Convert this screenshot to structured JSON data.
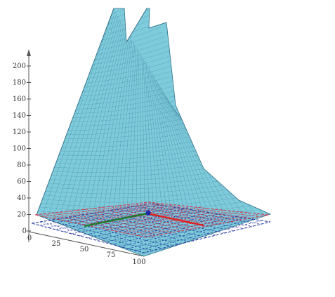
{
  "chart_data": {
    "type": "surface3d",
    "title": "",
    "xlabel": "",
    "ylabel": "",
    "zlabel": "",
    "z_axis": {
      "ticks": [
        "0",
        "20",
        "40",
        "60",
        "80",
        "100",
        "120",
        "140",
        "160",
        "180",
        "200"
      ],
      "range": [
        0,
        200
      ]
    },
    "x_axis": {
      "ticks": [
        "0",
        "25",
        "50",
        "75",
        "100"
      ],
      "range": [
        0,
        100
      ]
    },
    "grid": false,
    "legend": "none",
    "surface": {
      "color": "#7ecbdc",
      "mesh_color": "#2f6f86",
      "description_points": [
        {
          "x": 0,
          "y": "near",
          "z": 18
        },
        {
          "x": 0,
          "y": "far",
          "z": 230
        },
        {
          "x": 100,
          "y": "near",
          "z": 0
        },
        {
          "x": 100,
          "y": "far",
          "z": 20
        }
      ]
    },
    "planes": [
      {
        "name": "red-plane",
        "color": "#d9304a",
        "z": 20
      },
      {
        "name": "blue-plane",
        "color": "#1a2a9c",
        "z": 0
      }
    ],
    "axes_lines": [
      {
        "name": "x-axis-line",
        "color": "#e02020"
      },
      {
        "name": "y-axis-line",
        "color": "#1f7a2a"
      },
      {
        "name": "z-axis-line",
        "color": "#1a2a9c"
      }
    ],
    "origin_marker": {
      "color": "#1a2aa8"
    }
  }
}
